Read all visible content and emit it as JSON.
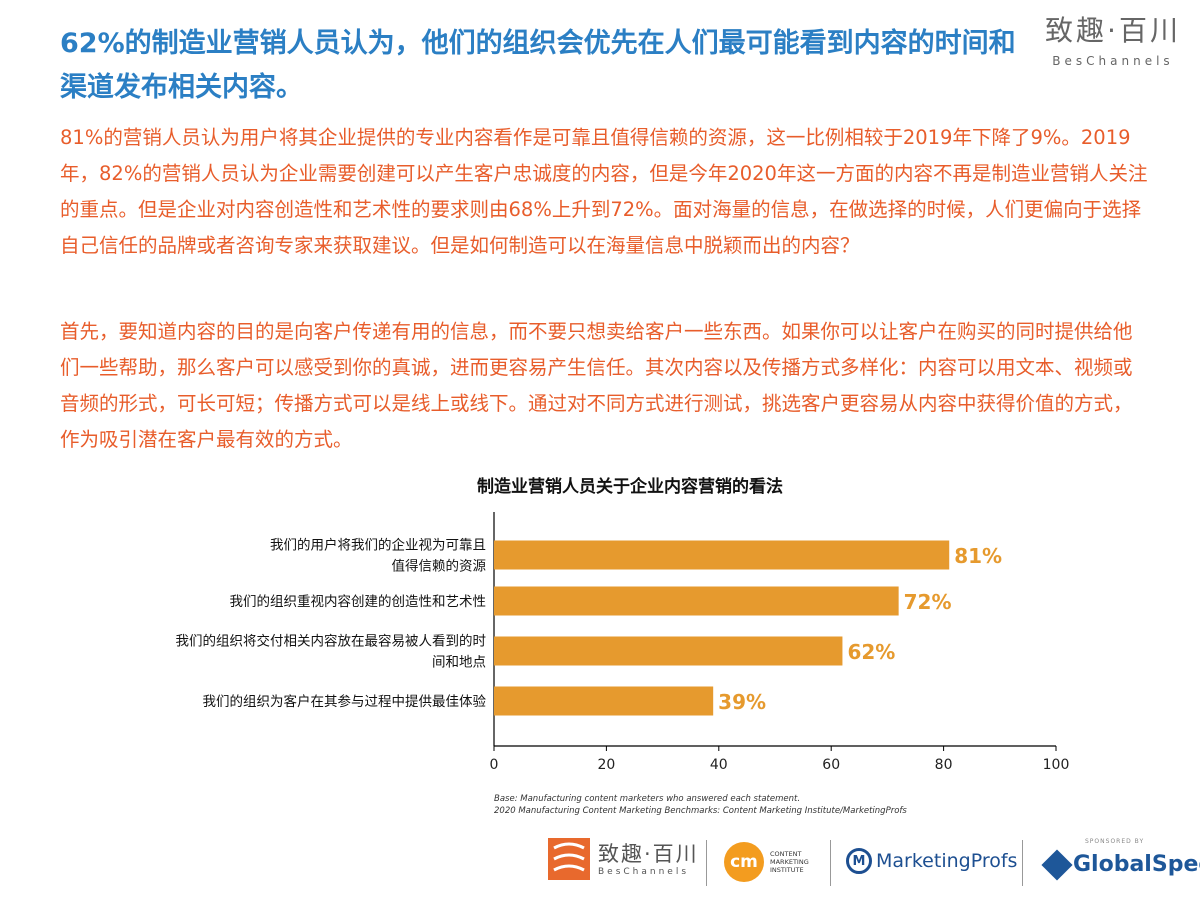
{
  "header": {
    "title": "62%的制造业营销人员认为，他们的组织会优先在人们最可能看到内容的时间和渠道发布相关内容。",
    "brand_cn": "致趣·百川",
    "brand_en": "BesChannels"
  },
  "body": {
    "paragraph1": "81%的营销人员认为用户将其企业提供的专业内容看作是可靠且值得信赖的资源，这一比例相较于2019年下降了9%。2019年，82%的营销人员认为企业需要创建可以产生客户忠诚度的内容，但是今年2020年这一方面的内容不再是制造业营销人关注的重点。但是企业对内容创造性和艺术性的要求则由68%上升到72%。面对海量的信息，在做选择的时候，人们更偏向于选择自己信任的品牌或者咨询专家来获取建议。但是如何制造可以在海量信息中脱颖而出的内容？",
    "paragraph2": "首先，要知道内容的目的是向客户传递有用的信息，而不要只想卖给客户一些东西。如果你可以让客户在购买的同时提供给他们一些帮助，那么客户可以感受到你的真诚，进而更容易产生信任。其次内容以及传播方式多样化：内容可以用文本、视频或音频的形式，可长可短；传播方式可以是线上或线下。通过对不同方式进行测试，挑选客户更容易从内容中获得价值的方式，作为吸引潜在客户最有效的方式。"
  },
  "chart_data": {
    "type": "bar",
    "orientation": "horizontal",
    "title": "制造业营销人员关于企业内容营销的看法",
    "categories": [
      [
        "我们的用户将我们的企业视为可靠且",
        "值得信赖的资源"
      ],
      [
        "我们的组织重视内容创建的创造性和艺术性"
      ],
      [
        "我们的组织将交付相关内容放在最容易被人看到的时",
        "间和地点"
      ],
      [
        "我们的组织为客户在其参与过程中提供最佳体验"
      ]
    ],
    "values": [
      81,
      72,
      62,
      39
    ],
    "value_labels": [
      "81%",
      "72%",
      "62%",
      "39%"
    ],
    "xlim": [
      0,
      100
    ],
    "xticks": [
      0,
      20,
      40,
      60,
      80,
      100
    ],
    "bar_color": "#e69a2e",
    "label_color": "#e69a2e",
    "grid": false
  },
  "footnote": {
    "line1": "Base: Manufacturing content marketers who answered each statement.",
    "line2": "2020 Manufacturing Content Marketing Benchmarks: Content Marketing Institute/MarketingProfs"
  },
  "logos": {
    "beschannels_cn": "致趣·百川",
    "beschannels_en": "BesChannels",
    "cmi_mark": "cm",
    "cmi_text": "CONTENT MARKETING INSTITUTE",
    "marketingprofs": "MarketingProfs",
    "sponsored": "SPONSORED BY",
    "globalspec": "GlobalSpec"
  },
  "colors": {
    "headline": "#2b7fc4",
    "body_text": "#e85d2b",
    "bar": "#e69a2e"
  }
}
